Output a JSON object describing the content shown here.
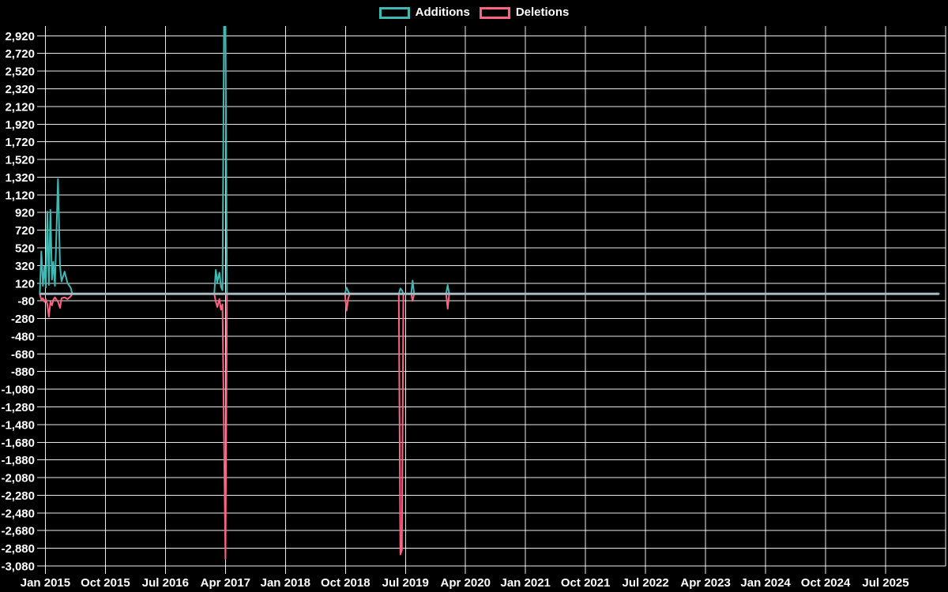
{
  "chart": {
    "background_color": "#000000",
    "grid_color": "rgba(255,255,255,0.92)",
    "text_color": "#ffffff",
    "zero_baseline_color": "#a6bac3"
  },
  "chart_data": {
    "type": "line",
    "title": "",
    "legend_position": "top",
    "grid": true,
    "x_axis": {
      "domain_start": "2014-12",
      "domain_months": 136,
      "tick_interval_months": 9,
      "tick_labels": [
        "Jan 2015",
        "Oct 2015",
        "Jul 2016",
        "Apr 2017",
        "Jan 2018",
        "Oct 2018",
        "Jul 2019",
        "Apr 2020",
        "Jan 2021",
        "Oct 2021",
        "Jul 2022",
        "Apr 2023",
        "Jan 2024",
        "Oct 2024",
        "Jul 2025"
      ]
    },
    "y_axis": {
      "ylim": [
        -3080,
        3030
      ],
      "tick_step": 200,
      "tick_values": [
        2920,
        2720,
        2520,
        2320,
        2120,
        1920,
        1720,
        1520,
        1320,
        1120,
        920,
        720,
        520,
        320,
        120,
        -80,
        -280,
        -480,
        -680,
        -880,
        -1080,
        -1280,
        -1480,
        -1680,
        -1880,
        -2080,
        -2280,
        -2480,
        -2680,
        -2880,
        -3080
      ],
      "tick_labels": [
        "2,920",
        "2,720",
        "2,520",
        "2,320",
        "2,120",
        "1,920",
        "1,720",
        "1,520",
        "1,320",
        "1,120",
        "920",
        "720",
        "520",
        "320",
        "120",
        "-80",
        "-280",
        "-480",
        "-680",
        "-880",
        "-1,080",
        "-1,280",
        "-1,480",
        "-1,680",
        "-1,880",
        "-2,080",
        "-2,280",
        "-2,480",
        "-2,680",
        "-2,880",
        "-3,080"
      ]
    },
    "dates": [
      "2014-12-06",
      "2014-12-13",
      "2014-12-20",
      "2014-12-27",
      "2015-01-03",
      "2015-01-10",
      "2015-01-17",
      "2015-01-24",
      "2015-01-31",
      "2015-02-07",
      "2015-02-14",
      "2015-02-28",
      "2015-03-07",
      "2015-03-14",
      "2015-03-28",
      "2015-04-11",
      "2015-04-25",
      "2015-05-02",
      "2017-02-11",
      "2017-02-18",
      "2017-02-25",
      "2017-03-04",
      "2017-03-11",
      "2017-03-18",
      "2017-03-25",
      "2017-04-01",
      "2017-04-08",
      "2018-09-29",
      "2018-10-06",
      "2018-10-13",
      "2018-10-20",
      "2019-06-01",
      "2019-06-08",
      "2019-06-15",
      "2019-06-22",
      "2019-07-27",
      "2019-08-03",
      "2019-08-10",
      "2020-01-04",
      "2020-01-11",
      "2020-01-18",
      "2026-03-01"
    ],
    "series": [
      {
        "name": "Additions",
        "color": "#40b8b4",
        "values": [
          0,
          480,
          90,
          310,
          70,
          930,
          100,
          950,
          160,
          360,
          90,
          1300,
          310,
          140,
          250,
          120,
          70,
          0,
          0,
          270,
          130,
          240,
          80,
          40,
          3100,
          3080,
          0,
          0,
          70,
          30,
          0,
          0,
          60,
          40,
          0,
          0,
          150,
          0,
          0,
          100,
          0,
          0
        ]
      },
      {
        "name": "Deletions",
        "color": "#ff6384",
        "values": [
          0,
          -70,
          -50,
          -90,
          -60,
          -120,
          -260,
          -90,
          -130,
          -70,
          -40,
          -90,
          -160,
          -50,
          -40,
          -60,
          -30,
          0,
          0,
          -90,
          -150,
          -60,
          -180,
          -120,
          -1650,
          -3000,
          0,
          0,
          -190,
          -60,
          0,
          0,
          -2950,
          -2900,
          0,
          0,
          -80,
          0,
          0,
          -170,
          0,
          0
        ]
      }
    ]
  }
}
